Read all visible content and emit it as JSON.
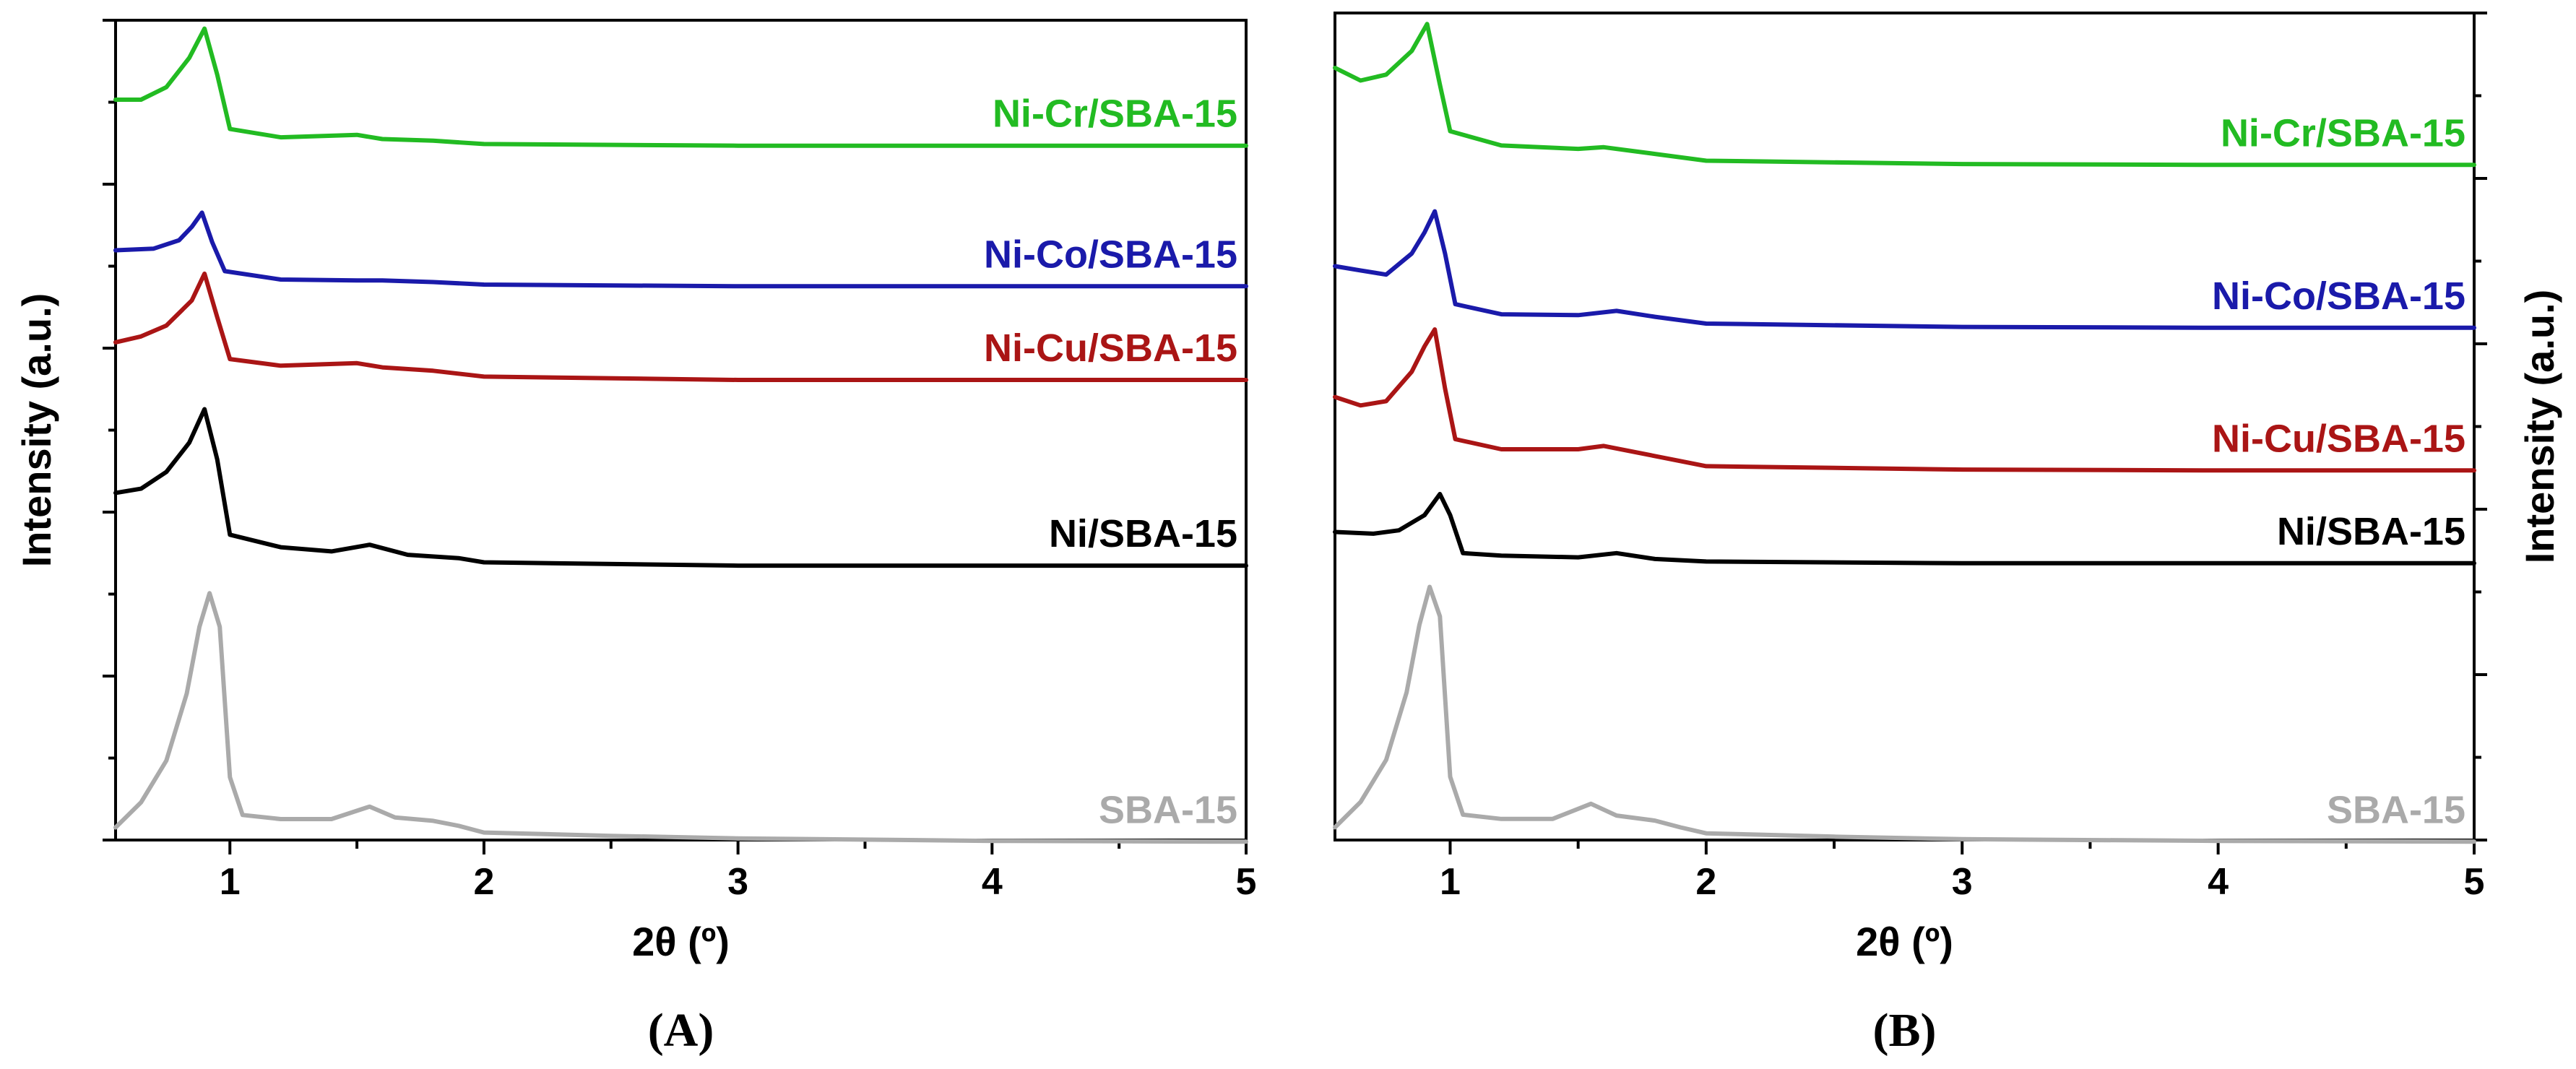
{
  "chart_data": [
    {
      "type": "line",
      "panel_label": "(A)",
      "xlabel": "2θ (º)",
      "ylabel": "Intensity (a.u.)",
      "xlim": [
        0.55,
        5
      ],
      "xticks": [
        "1",
        "2",
        "3",
        "4",
        "5"
      ],
      "y_axis_side": "left",
      "grid": false,
      "legend": "inline labels at right end of each curve",
      "series": [
        {
          "name": "Ni-Cr/SBA-15",
          "color": "#22bb22",
          "baseline": 0.835,
          "points": [
            [
              0.55,
              0.89
            ],
            [
              0.65,
              0.89
            ],
            [
              0.75,
              0.905
            ],
            [
              0.84,
              0.94
            ],
            [
              0.9,
              0.975
            ],
            [
              0.95,
              0.92
            ],
            [
              1.0,
              0.855
            ],
            [
              1.2,
              0.845
            ],
            [
              1.5,
              0.848
            ],
            [
              1.6,
              0.843
            ],
            [
              1.8,
              0.841
            ],
            [
              2.0,
              0.837
            ],
            [
              3,
              0.835
            ],
            [
              4,
              0.835
            ],
            [
              5,
              0.835
            ]
          ]
        },
        {
          "name": "Ni-Co/SBA-15",
          "color": "#1a1aaa",
          "baseline": 0.667,
          "points": [
            [
              0.55,
              0.71
            ],
            [
              0.7,
              0.712
            ],
            [
              0.8,
              0.722
            ],
            [
              0.85,
              0.738
            ],
            [
              0.89,
              0.755
            ],
            [
              0.93,
              0.72
            ],
            [
              0.98,
              0.685
            ],
            [
              1.2,
              0.675
            ],
            [
              1.5,
              0.674
            ],
            [
              1.6,
              0.674
            ],
            [
              1.8,
              0.672
            ],
            [
              2.0,
              0.669
            ],
            [
              3,
              0.667
            ],
            [
              4,
              0.667
            ],
            [
              5,
              0.667
            ]
          ]
        },
        {
          "name": "Ni-Cu/SBA-15",
          "color": "#aa1515",
          "baseline": 0.555,
          "points": [
            [
              0.55,
              0.6
            ],
            [
              0.65,
              0.607
            ],
            [
              0.75,
              0.62
            ],
            [
              0.85,
              0.65
            ],
            [
              0.9,
              0.682
            ],
            [
              0.95,
              0.63
            ],
            [
              1.0,
              0.58
            ],
            [
              1.2,
              0.572
            ],
            [
              1.5,
              0.575
            ],
            [
              1.6,
              0.57
            ],
            [
              1.8,
              0.566
            ],
            [
              2.0,
              0.559
            ],
            [
              3,
              0.555
            ],
            [
              4,
              0.555
            ],
            [
              5,
              0.555
            ]
          ]
        },
        {
          "name": "Ni/SBA-15",
          "color": "#000000",
          "baseline": 0.333,
          "points": [
            [
              0.55,
              0.42
            ],
            [
              0.65,
              0.425
            ],
            [
              0.75,
              0.445
            ],
            [
              0.84,
              0.48
            ],
            [
              0.9,
              0.52
            ],
            [
              0.95,
              0.46
            ],
            [
              1.0,
              0.37
            ],
            [
              1.2,
              0.355
            ],
            [
              1.4,
              0.35
            ],
            [
              1.55,
              0.358
            ],
            [
              1.7,
              0.346
            ],
            [
              1.9,
              0.342
            ],
            [
              2.0,
              0.337
            ],
            [
              3,
              0.333
            ],
            [
              4,
              0.333
            ],
            [
              5,
              0.333
            ]
          ]
        },
        {
          "name": "SBA-15",
          "color": "#aaaaaa",
          "baseline": 0.003,
          "points": [
            [
              0.55,
              0.02
            ],
            [
              0.65,
              0.05
            ],
            [
              0.75,
              0.1
            ],
            [
              0.83,
              0.18
            ],
            [
              0.88,
              0.26
            ],
            [
              0.92,
              0.3
            ],
            [
              0.96,
              0.26
            ],
            [
              1.0,
              0.08
            ],
            [
              1.05,
              0.035
            ],
            [
              1.2,
              0.03
            ],
            [
              1.4,
              0.03
            ],
            [
              1.55,
              0.045
            ],
            [
              1.65,
              0.032
            ],
            [
              1.8,
              0.028
            ],
            [
              1.9,
              0.022
            ],
            [
              2.0,
              0.014
            ],
            [
              2.5,
              0.01
            ],
            [
              3,
              0.007
            ],
            [
              4,
              0.004
            ],
            [
              5,
              0.003
            ]
          ]
        }
      ]
    },
    {
      "type": "line",
      "panel_label": "(B)",
      "xlabel": "2θ (º)",
      "ylabel": "Intensity (a.u.)",
      "xlim": [
        0.55,
        5
      ],
      "xticks": [
        "1",
        "2",
        "3",
        "4",
        "5"
      ],
      "y_axis_side": "right",
      "grid": false,
      "legend": "inline labels at right end of each curve",
      "series": [
        {
          "name": "Ni-Cr/SBA-15",
          "color": "#22bb22",
          "baseline": 0.805,
          "points": [
            [
              0.55,
              0.92
            ],
            [
              0.65,
              0.905
            ],
            [
              0.75,
              0.912
            ],
            [
              0.85,
              0.94
            ],
            [
              0.91,
              0.972
            ],
            [
              0.96,
              0.9
            ],
            [
              1.0,
              0.845
            ],
            [
              1.2,
              0.828
            ],
            [
              1.5,
              0.824
            ],
            [
              1.6,
              0.826
            ],
            [
              1.8,
              0.818
            ],
            [
              2.0,
              0.81
            ],
            [
              3,
              0.806
            ],
            [
              4,
              0.805
            ],
            [
              5,
              0.805
            ]
          ]
        },
        {
          "name": "Ni-Co/SBA-15",
          "color": "#1a1aaa",
          "baseline": 0.612,
          "points": [
            [
              0.55,
              0.685
            ],
            [
              0.65,
              0.68
            ],
            [
              0.75,
              0.675
            ],
            [
              0.85,
              0.7
            ],
            [
              0.9,
              0.725
            ],
            [
              0.94,
              0.75
            ],
            [
              0.98,
              0.7
            ],
            [
              1.02,
              0.64
            ],
            [
              1.2,
              0.628
            ],
            [
              1.5,
              0.627
            ],
            [
              1.65,
              0.632
            ],
            [
              1.8,
              0.625
            ],
            [
              2.0,
              0.617
            ],
            [
              3,
              0.613
            ],
            [
              4,
              0.612
            ],
            [
              5,
              0.612
            ]
          ]
        },
        {
          "name": "Ni-Cu/SBA-15",
          "color": "#aa1515",
          "baseline": 0.443,
          "points": [
            [
              0.55,
              0.53
            ],
            [
              0.65,
              0.52
            ],
            [
              0.75,
              0.525
            ],
            [
              0.85,
              0.56
            ],
            [
              0.9,
              0.59
            ],
            [
              0.94,
              0.61
            ],
            [
              0.98,
              0.54
            ],
            [
              1.02,
              0.48
            ],
            [
              1.2,
              0.468
            ],
            [
              1.5,
              0.468
            ],
            [
              1.6,
              0.472
            ],
            [
              1.8,
              0.46
            ],
            [
              2.0,
              0.448
            ],
            [
              3,
              0.444
            ],
            [
              4,
              0.443
            ],
            [
              5,
              0.443
            ]
          ]
        },
        {
          "name": "Ni/SBA-15",
          "color": "#000000",
          "baseline": 0.333,
          "points": [
            [
              0.55,
              0.37
            ],
            [
              0.7,
              0.368
            ],
            [
              0.8,
              0.372
            ],
            [
              0.9,
              0.39
            ],
            [
              0.96,
              0.415
            ],
            [
              1.0,
              0.39
            ],
            [
              1.05,
              0.345
            ],
            [
              1.2,
              0.342
            ],
            [
              1.5,
              0.34
            ],
            [
              1.65,
              0.345
            ],
            [
              1.8,
              0.338
            ],
            [
              2.0,
              0.335
            ],
            [
              3,
              0.333
            ],
            [
              4,
              0.333
            ],
            [
              5,
              0.333
            ]
          ]
        },
        {
          "name": "SBA-15",
          "color": "#aaaaaa",
          "baseline": 0.003,
          "points": [
            [
              0.55,
              0.02
            ],
            [
              0.65,
              0.05
            ],
            [
              0.75,
              0.1
            ],
            [
              0.83,
              0.18
            ],
            [
              0.88,
              0.26
            ],
            [
              0.92,
              0.305
            ],
            [
              0.96,
              0.27
            ],
            [
              1.0,
              0.08
            ],
            [
              1.05,
              0.035
            ],
            [
              1.2,
              0.03
            ],
            [
              1.4,
              0.03
            ],
            [
              1.55,
              0.048
            ],
            [
              1.65,
              0.034
            ],
            [
              1.8,
              0.028
            ],
            [
              1.9,
              0.02
            ],
            [
              2.0,
              0.013
            ],
            [
              2.5,
              0.009
            ],
            [
              3,
              0.006
            ],
            [
              4,
              0.004
            ],
            [
              5,
              0.003
            ]
          ]
        }
      ]
    }
  ]
}
